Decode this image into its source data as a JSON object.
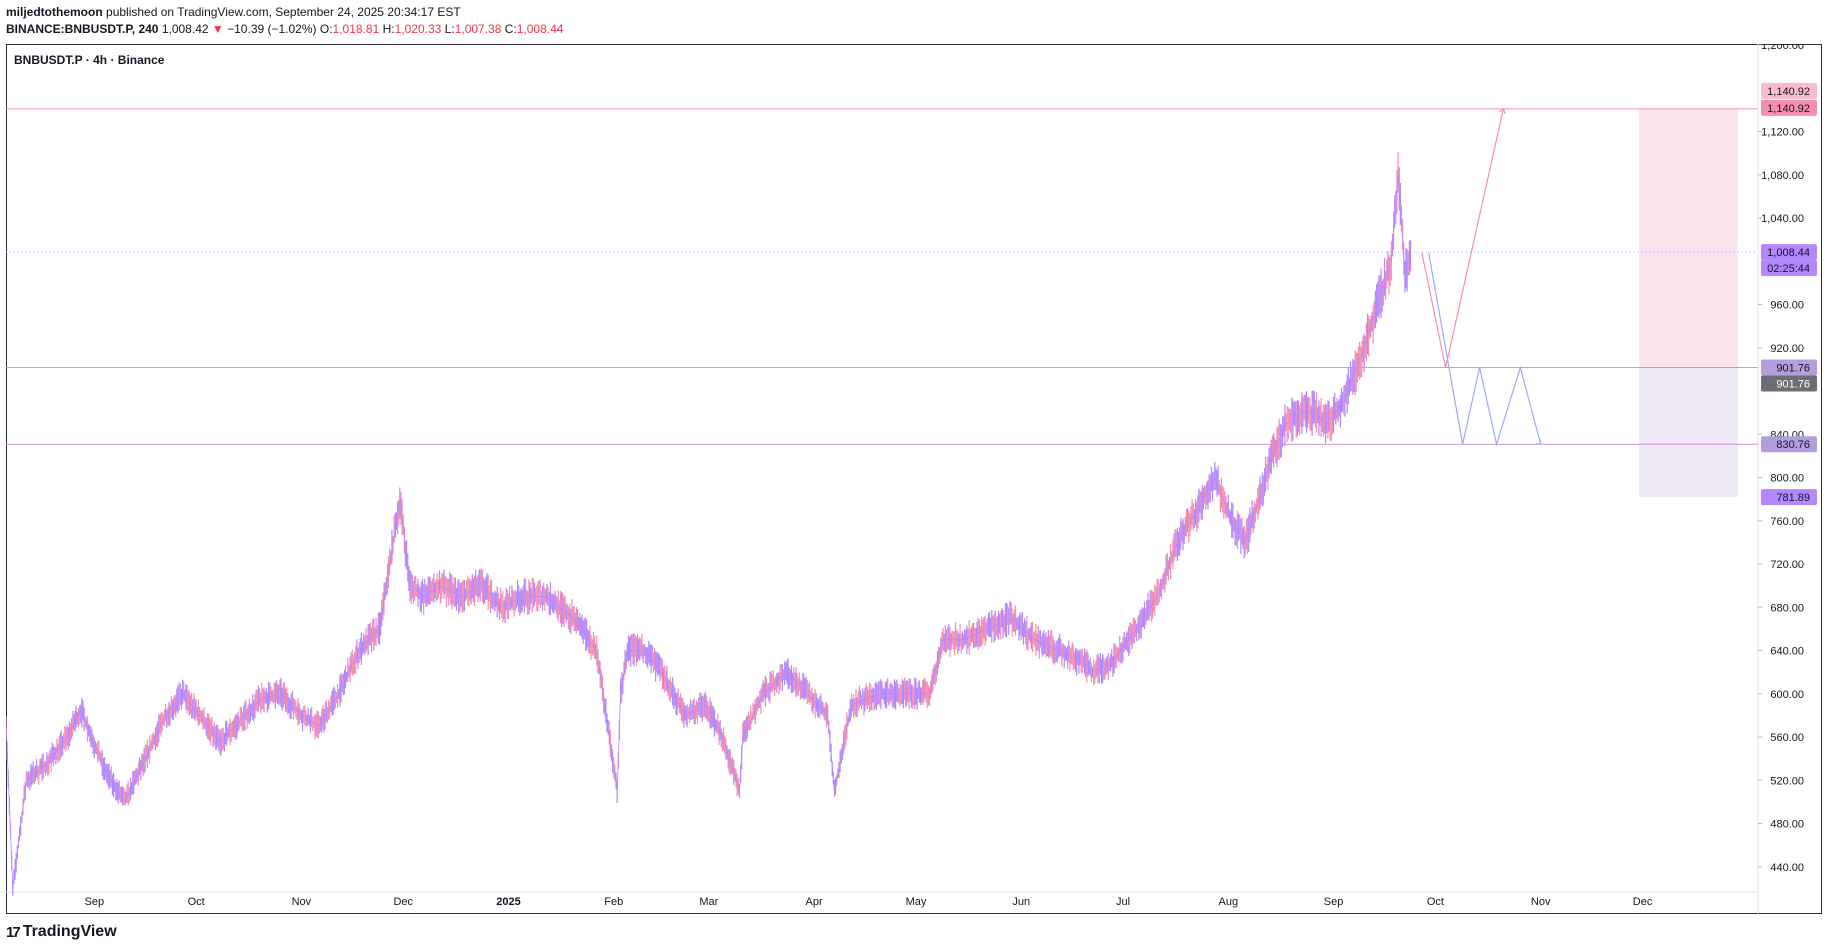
{
  "header": {
    "author": "miljedtothemoon",
    "published": "published on TradingView.com, September 24, 2025 20:34:17 EST",
    "symbol": "BINANCE:BNBUSDT.P, 240",
    "last": "1,008.42",
    "down_arrow": "▼",
    "change": "−10.39 (−1.02%)",
    "o_label": "O:",
    "o": "1,018.81",
    "h_label": "H:",
    "h": "1,020.33",
    "l_label": "L:",
    "l": "1,007.38",
    "c_label": "C:",
    "c": "1,008.44"
  },
  "legend": {
    "title": "BNBUSDT.P · 4h · Binance"
  },
  "branding": {
    "logo": "17",
    "name": "TradingView"
  },
  "colors": {
    "candle": "#b388ff",
    "candle_alt": "#f48fb1",
    "target_zone": "#fce4ec",
    "stop_zone": "#ede7f6",
    "pink_line": "#f48fb1",
    "violet_line": "#9fa8ff",
    "purple_line": "#ce93d8",
    "down": "#f23645"
  },
  "chart_data": {
    "type": "line",
    "title": "BNBUSDT.P · 4h · Binance",
    "xlabel": "",
    "ylabel": "",
    "ylim": [
      400,
      1200
    ],
    "grid": false,
    "y_ticks": [
      "1,200.00",
      "1,120.00",
      "1,080.00",
      "1,040.00",
      "960.00",
      "920.00",
      "840.00",
      "800.00",
      "760.00",
      "720.00",
      "680.00",
      "640.00",
      "600.00",
      "560.00",
      "520.00",
      "480.00",
      "440.00"
    ],
    "y_tick_values": [
      1200,
      1120,
      1080,
      1040,
      960,
      920,
      840,
      800,
      760,
      720,
      680,
      640,
      600,
      560,
      520,
      480,
      440
    ],
    "x_ticks": [
      "Sep",
      "Oct",
      "Nov",
      "Dec",
      "2025",
      "Feb",
      "Mar",
      "Apr",
      "May",
      "Jun",
      "Jul",
      "Aug",
      "Sep",
      "Oct",
      "Nov",
      "Dec"
    ],
    "x_tick_dates": [
      "2024-09-01",
      "2024-10-01",
      "2024-11-01",
      "2024-12-01",
      "2025-01-01",
      "2025-02-01",
      "2025-03-01",
      "2025-04-01",
      "2025-05-01",
      "2025-06-01",
      "2025-07-01",
      "2025-08-01",
      "2025-09-01",
      "2025-10-01",
      "2025-11-01",
      "2025-12-01"
    ],
    "xlim": [
      "2024-08-06",
      "2026-01-04"
    ],
    "series": [
      {
        "values_date": [
          "2024-08-06",
          "2024-08-08",
          "2024-08-12",
          "2024-08-18",
          "2024-08-24",
          "2024-08-28",
          "2024-09-04",
          "2024-09-10",
          "2024-09-16",
          "2024-09-22",
          "2024-09-27",
          "2024-10-02",
          "2024-10-08",
          "2024-10-14",
          "2024-10-20",
          "2024-10-26",
          "2024-11-01",
          "2024-11-06",
          "2024-11-12",
          "2024-11-18",
          "2024-11-24",
          "2024-11-30",
          "2024-12-03",
          "2024-12-07",
          "2024-12-12",
          "2024-12-18",
          "2024-12-24",
          "2024-12-30",
          "2025-01-05",
          "2025-01-12",
          "2025-01-20",
          "2025-01-27",
          "2025-02-02",
          "2025-02-03",
          "2025-02-05",
          "2025-02-10",
          "2025-02-15",
          "2025-02-22",
          "2025-02-28",
          "2025-03-05",
          "2025-03-10",
          "2025-03-11",
          "2025-03-17",
          "2025-03-24",
          "2025-03-30",
          "2025-04-05",
          "2025-04-07",
          "2025-04-12",
          "2025-04-20",
          "2025-04-28",
          "2025-05-05",
          "2025-05-09",
          "2025-05-15",
          "2025-05-22",
          "2025-05-29",
          "2025-06-05",
          "2025-06-12",
          "2025-06-19",
          "2025-06-22",
          "2025-06-28",
          "2025-07-05",
          "2025-07-11",
          "2025-07-17",
          "2025-07-23",
          "2025-07-28",
          "2025-08-02",
          "2025-08-06",
          "2025-08-10",
          "2025-08-14",
          "2025-08-18",
          "2025-08-22",
          "2025-08-26",
          "2025-08-30",
          "2025-09-04",
          "2025-09-10",
          "2025-09-14",
          "2025-09-18",
          "2025-09-20",
          "2025-09-22",
          "2025-09-24"
        ],
        "values_price": [
          575,
          420,
          520,
          535,
          560,
          585,
          530,
          500,
          540,
          580,
          600,
          580,
          555,
          575,
          595,
          600,
          580,
          570,
          600,
          640,
          660,
          780,
          700,
          690,
          700,
          690,
          700,
          680,
          690,
          690,
          670,
          640,
          510,
          600,
          640,
          640,
          620,
          580,
          590,
          560,
          510,
          560,
          600,
          620,
          600,
          580,
          510,
          590,
          600,
          600,
          600,
          650,
          650,
          660,
          670,
          650,
          640,
          630,
          620,
          630,
          660,
          690,
          740,
          770,
          800,
          760,
          740,
          780,
          820,
          850,
          860,
          860,
          850,
          870,
          920,
          960,
          1000,
          1080,
          990,
          1008
        ]
      }
    ],
    "annotations": {
      "target_price": 1140.92,
      "current_price": 1008.44,
      "countdown": "02:25:44",
      "upper_level": 901.76,
      "lower_level": 830.76,
      "stop_price": 781.89
    },
    "axis_tags": {
      "target_a": "1,140.92",
      "target_b": "1,140.92",
      "current": "1,008.44",
      "countdown": "02:25:44",
      "upper": "901.76",
      "upper_dark": "901.76",
      "lower": "830.76",
      "stop": "781.89"
    }
  }
}
